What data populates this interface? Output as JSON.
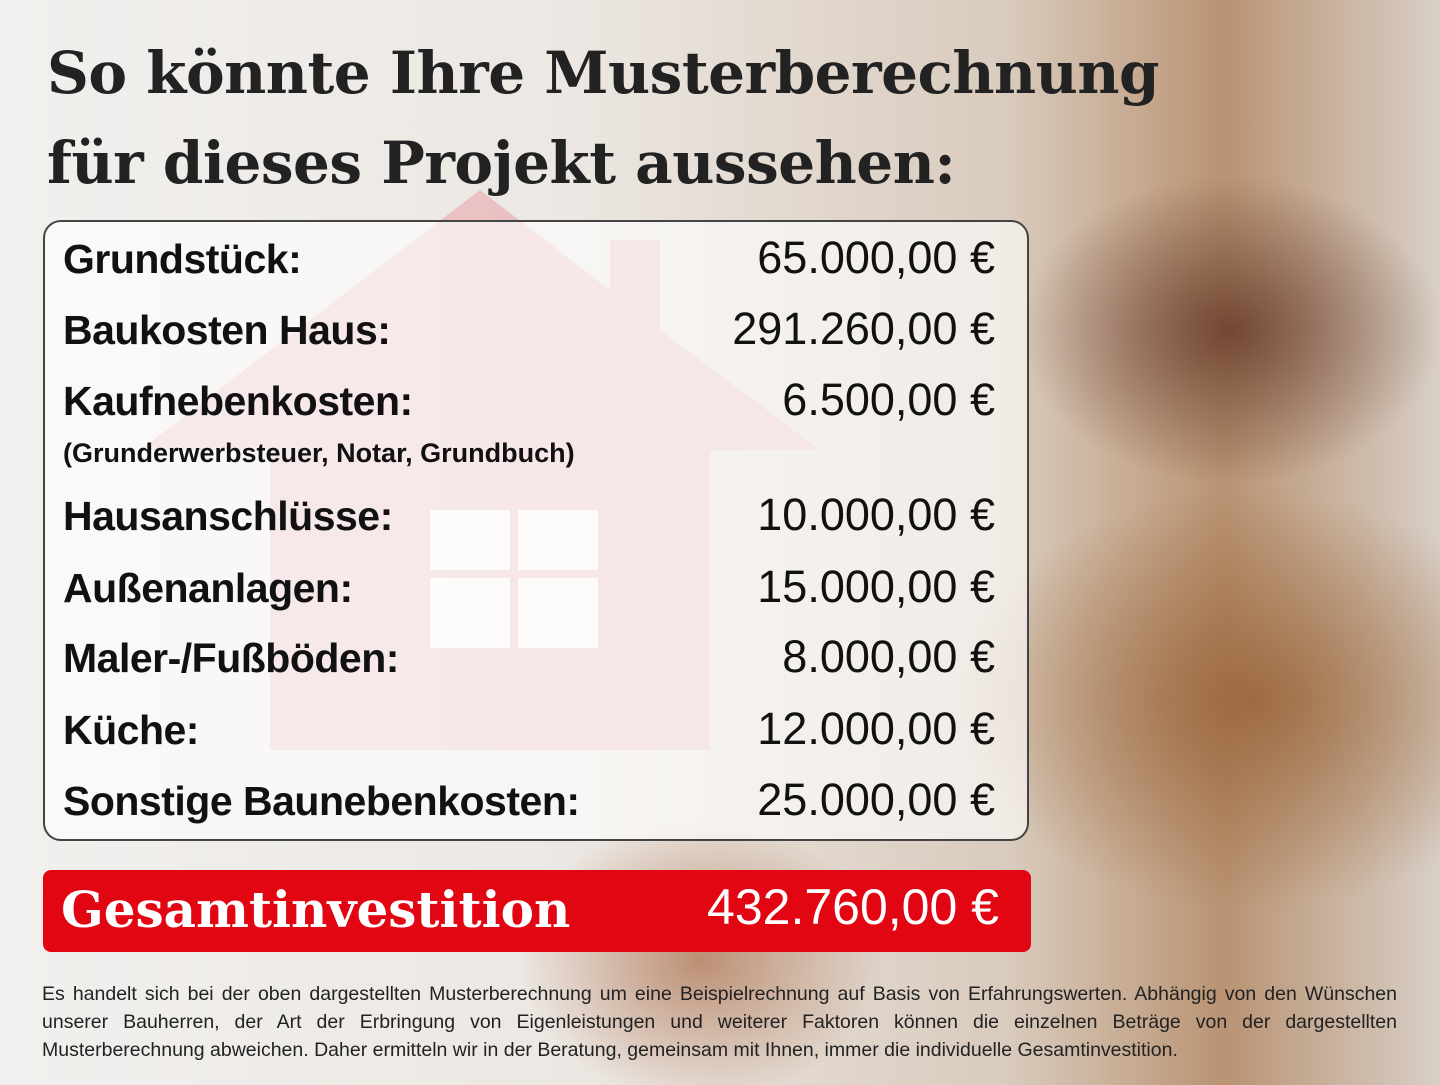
{
  "title": {
    "line1": "So könnte Ihre Musterberechnung",
    "line2": "für dieses Projekt aussehen:"
  },
  "rows": [
    {
      "label": "Grundstück:",
      "value": "65.000,00 €"
    },
    {
      "label": "Baukosten Haus:",
      "value": "291.260,00 €"
    },
    {
      "label": "Kaufnebenkosten:",
      "value": "6.500,00 €",
      "note": "(Grunderwerbsteuer, Notar, Grundbuch)"
    },
    {
      "label": "Hausanschlüsse:",
      "value": "10.000,00 €"
    },
    {
      "label": "Außenanlagen:",
      "value": "15.000,00 €"
    },
    {
      "label": "Maler-/Fußböden:",
      "value": "8.000,00 €"
    },
    {
      "label": "Küche:",
      "value": "12.000,00 €"
    },
    {
      "label": "Sonstige Baunebenkosten:",
      "value": "25.000,00 €"
    }
  ],
  "total": {
    "label": "Gesamtinvestition",
    "value": "432.760,00 €"
  },
  "footer": "Es handelt sich bei der oben dargestellten Musterberechnung um eine Beispielrechnung auf Basis von Erfahrungswerten. Abhängig von den Wünschen unserer Bauherren, der Art der Erbringung von Eigenleistungen und weiterer Faktoren können die einzelnen Beträge von der dargestellten Musterberechnung abweichen. Daher ermitteln wir in der Beratung, gemeinsam mit Ihnen, immer die individuelle Gesamtinvestition.",
  "colors": {
    "accent": "#e20613",
    "text": "#222222",
    "house": "#e8b4b8"
  }
}
